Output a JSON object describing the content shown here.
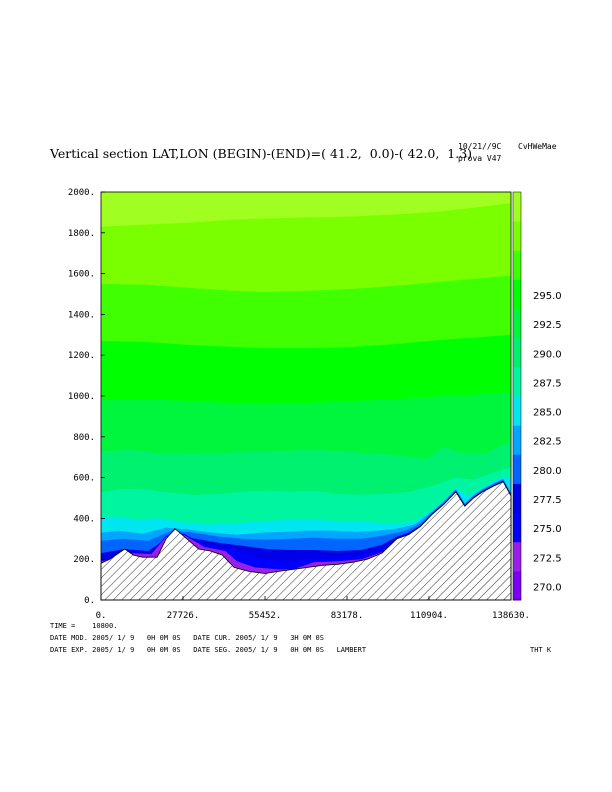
{
  "header": {
    "title": "Vertical section LAT,LON (BEGIN)-(END)=( 41.2,  0.0)-( 42.0,  1.3)",
    "run_date": "10/21//9C",
    "run_id": "CvHWeMae",
    "run_name": "prova V47"
  },
  "footer": {
    "time_line": "TIME =    10800.",
    "line1": "DATE MOD. 2005/ 1/ 9   0H 0M 0S   DATE CUR. 2005/ 1/ 9   3H 0M 0S",
    "line2": "DATE EXP. 2005/ 1/ 9   0H 0M 0S   DATE SEG. 2005/ 1/ 9   0H 0M 0S   LAMBERT",
    "variable": "THT K"
  },
  "chart_data": {
    "type": "heatmap",
    "variable": "THT",
    "units": "K",
    "xlim": [
      0,
      138630
    ],
    "ylim": [
      0,
      2000
    ],
    "xticks": [
      "0.",
      "27726.",
      "55452.",
      "83178.",
      "110904.",
      "138630."
    ],
    "xtick_values": [
      0,
      27726,
      55452,
      83178,
      110904,
      138630
    ],
    "yticks": [
      "0.",
      "200.",
      "400.",
      "600.",
      "800.",
      "1000.",
      "1200.",
      "1400.",
      "1600.",
      "1800.",
      "2000."
    ],
    "ytick_values": [
      0,
      200,
      400,
      600,
      800,
      1000,
      1200,
      1400,
      1600,
      1800,
      2000
    ],
    "colorbar_labels": [
      "270.0",
      "272.5",
      "275.0",
      "277.5",
      "280.0",
      "282.5",
      "285.0",
      "287.5",
      "290.0",
      "292.5",
      "295.0"
    ],
    "colorbar_values": [
      270.0,
      272.5,
      275.0,
      277.5,
      280.0,
      282.5,
      285.0,
      287.5,
      290.0,
      292.5,
      295.0
    ],
    "levels_colors": [
      "#7a00f5",
      "#9a1fe8",
      "#0000ff",
      "#0000e6",
      "#0066ff",
      "#00a6ff",
      "#00e6f0",
      "#00f5a0",
      "#00f070",
      "#00f53d",
      "#00ff00",
      "#40ff00",
      "#7aff00",
      "#a0ff20"
    ],
    "terrain": [
      [
        0,
        180
      ],
      [
        3000,
        200
      ],
      [
        8000,
        250
      ],
      [
        11000,
        220
      ],
      [
        14000,
        210
      ],
      [
        19000,
        210
      ],
      [
        22000,
        300
      ],
      [
        25000,
        350
      ],
      [
        29000,
        300
      ],
      [
        33000,
        250
      ],
      [
        37000,
        240
      ],
      [
        41000,
        220
      ],
      [
        45000,
        160
      ],
      [
        50000,
        140
      ],
      [
        55452,
        130
      ],
      [
        60000,
        140
      ],
      [
        65000,
        150
      ],
      [
        70000,
        160
      ],
      [
        75000,
        170
      ],
      [
        80000,
        175
      ],
      [
        85000,
        185
      ],
      [
        90000,
        200
      ],
      [
        95000,
        230
      ],
      [
        100000,
        300
      ],
      [
        104000,
        320
      ],
      [
        108000,
        360
      ],
      [
        112000,
        420
      ],
      [
        116000,
        470
      ],
      [
        120000,
        530
      ],
      [
        123000,
        460
      ],
      [
        126000,
        500
      ],
      [
        129000,
        530
      ],
      [
        133000,
        560
      ],
      [
        136000,
        580
      ],
      [
        138630,
        510
      ]
    ],
    "contours": [
      [
        [
          0,
          190
        ],
        [
          5000,
          205
        ],
        [
          10000,
          230
        ],
        [
          17000,
          225
        ],
        [
          22000,
          310
        ],
        [
          28000,
          320
        ],
        [
          35000,
          260
        ],
        [
          42000,
          240
        ],
        [
          46000,
          190
        ],
        [
          52000,
          160
        ],
        [
          60000,
          150
        ],
        [
          65000,
          150
        ],
        [
          72000,
          185
        ],
        [
          80000,
          190
        ],
        [
          88000,
          200
        ],
        [
          95000,
          235
        ],
        [
          100000,
          300
        ],
        [
          104000,
          320
        ],
        [
          108000,
          360
        ],
        [
          112000,
          420
        ],
        [
          116000,
          470
        ],
        [
          120000,
          530
        ],
        [
          123000,
          460
        ],
        [
          126000,
          500
        ],
        [
          129000,
          530
        ],
        [
          133000,
          560
        ],
        [
          136000,
          580
        ],
        [
          138630,
          510
        ]
      ],
      [
        [
          0,
          200
        ],
        [
          5000,
          215
        ],
        [
          10000,
          240
        ],
        [
          17000,
          230
        ],
        [
          22000,
          315
        ],
        [
          28000,
          325
        ],
        [
          35000,
          270
        ],
        [
          42000,
          255
        ],
        [
          48000,
          230
        ],
        [
          56000,
          200
        ],
        [
          65000,
          190
        ],
        [
          72000,
          210
        ],
        [
          80000,
          210
        ],
        [
          88000,
          220
        ],
        [
          95000,
          250
        ],
        [
          100000,
          305
        ],
        [
          104000,
          325
        ],
        [
          108000,
          362
        ],
        [
          112000,
          422
        ],
        [
          116000,
          472
        ],
        [
          120000,
          532
        ],
        [
          123000,
          462
        ],
        [
          126000,
          502
        ],
        [
          129000,
          532
        ],
        [
          133000,
          562
        ],
        [
          136000,
          582
        ],
        [
          138630,
          512
        ]
      ],
      [
        [
          0,
          230
        ],
        [
          8000,
          250
        ],
        [
          16000,
          240
        ],
        [
          24000,
          320
        ],
        [
          32000,
          300
        ],
        [
          40000,
          280
        ],
        [
          48000,
          265
        ],
        [
          56000,
          250
        ],
        [
          64000,
          245
        ],
        [
          72000,
          245
        ],
        [
          80000,
          240
        ],
        [
          88000,
          245
        ],
        [
          95000,
          270
        ],
        [
          100000,
          310
        ],
        [
          104000,
          330
        ],
        [
          108000,
          365
        ],
        [
          112000,
          425
        ],
        [
          116000,
          475
        ],
        [
          120000,
          535
        ],
        [
          123000,
          465
        ],
        [
          126000,
          505
        ],
        [
          129000,
          535
        ],
        [
          133000,
          565
        ],
        [
          136000,
          585
        ],
        [
          138630,
          515
        ]
      ],
      [
        [
          0,
          290
        ],
        [
          8000,
          300
        ],
        [
          16000,
          290
        ],
        [
          24000,
          340
        ],
        [
          32000,
          330
        ],
        [
          40000,
          310
        ],
        [
          48000,
          300
        ],
        [
          56000,
          295
        ],
        [
          64000,
          300
        ],
        [
          72000,
          305
        ],
        [
          80000,
          300
        ],
        [
          88000,
          300
        ],
        [
          95000,
          315
        ],
        [
          100000,
          330
        ],
        [
          104000,
          345
        ],
        [
          108000,
          375
        ],
        [
          112000,
          430
        ],
        [
          116000,
          480
        ],
        [
          120000,
          540
        ],
        [
          123000,
          470
        ],
        [
          126000,
          510
        ],
        [
          129000,
          540
        ],
        [
          133000,
          570
        ],
        [
          136000,
          590
        ],
        [
          138630,
          520
        ]
      ],
      [
        [
          0,
          330
        ],
        [
          6000,
          340
        ],
        [
          14000,
          325
        ],
        [
          22000,
          355
        ],
        [
          30000,
          345
        ],
        [
          38000,
          330
        ],
        [
          46000,
          320
        ],
        [
          54000,
          330
        ],
        [
          62000,
          335
        ],
        [
          70000,
          340
        ],
        [
          78000,
          340
        ],
        [
          86000,
          335
        ],
        [
          94000,
          340
        ],
        [
          100000,
          350
        ],
        [
          106000,
          370
        ],
        [
          112000,
          435
        ],
        [
          116000,
          485
        ],
        [
          120000,
          545
        ],
        [
          123000,
          475
        ],
        [
          126000,
          515
        ],
        [
          129000,
          545
        ],
        [
          133000,
          575
        ],
        [
          136000,
          595
        ],
        [
          138630,
          525
        ]
      ],
      [
        [
          0,
          410
        ],
        [
          6000,
          405
        ],
        [
          12000,
          395
        ],
        [
          20000,
          400
        ],
        [
          28000,
          380
        ],
        [
          36000,
          370
        ],
        [
          44000,
          375
        ],
        [
          52000,
          385
        ],
        [
          60000,
          390
        ],
        [
          68000,
          395
        ],
        [
          76000,
          390
        ],
        [
          84000,
          385
        ],
        [
          92000,
          380
        ],
        [
          100000,
          375
        ],
        [
          106000,
          385
        ],
        [
          112000,
          440
        ],
        [
          116000,
          490
        ],
        [
          120000,
          550
        ],
        [
          124000,
          510
        ],
        [
          128000,
          540
        ],
        [
          132000,
          580
        ],
        [
          136000,
          600
        ],
        [
          138630,
          600
        ]
      ],
      [
        [
          0,
          530
        ],
        [
          8000,
          545
        ],
        [
          16000,
          540
        ],
        [
          24000,
          525
        ],
        [
          32000,
          515
        ],
        [
          40000,
          520
        ],
        [
          48000,
          530
        ],
        [
          56000,
          535
        ],
        [
          64000,
          530
        ],
        [
          72000,
          535
        ],
        [
          80000,
          520
        ],
        [
          88000,
          515
        ],
        [
          96000,
          520
        ],
        [
          104000,
          530
        ],
        [
          110000,
          550
        ],
        [
          116000,
          580
        ],
        [
          120000,
          600
        ],
        [
          126000,
          590
        ],
        [
          132000,
          620
        ],
        [
          136000,
          640
        ],
        [
          138630,
          650
        ]
      ],
      [
        [
          0,
          730
        ],
        [
          10000,
          735
        ],
        [
          20000,
          720
        ],
        [
          30000,
          715
        ],
        [
          40000,
          720
        ],
        [
          50000,
          725
        ],
        [
          60000,
          730
        ],
        [
          70000,
          735
        ],
        [
          80000,
          730
        ],
        [
          90000,
          720
        ],
        [
          100000,
          710
        ],
        [
          110000,
          690
        ],
        [
          116000,
          750
        ],
        [
          122000,
          720
        ],
        [
          130000,
          720
        ],
        [
          136000,
          760
        ],
        [
          138630,
          780
        ]
      ],
      [
        [
          0,
          980
        ],
        [
          15000,
          985
        ],
        [
          30000,
          975
        ],
        [
          45000,
          965
        ],
        [
          55452,
          960
        ],
        [
          70000,
          965
        ],
        [
          85000,
          975
        ],
        [
          100000,
          985
        ],
        [
          115000,
          1000
        ],
        [
          130000,
          1010
        ],
        [
          138630,
          1020
        ]
      ],
      [
        [
          0,
          1270
        ],
        [
          15000,
          1265
        ],
        [
          30000,
          1250
        ],
        [
          45000,
          1240
        ],
        [
          55452,
          1235
        ],
        [
          70000,
          1235
        ],
        [
          85000,
          1240
        ],
        [
          100000,
          1255
        ],
        [
          115000,
          1275
        ],
        [
          130000,
          1290
        ],
        [
          138630,
          1300
        ]
      ],
      [
        [
          0,
          1550
        ],
        [
          15000,
          1545
        ],
        [
          30000,
          1530
        ],
        [
          45000,
          1515
        ],
        [
          55452,
          1510
        ],
        [
          70000,
          1515
        ],
        [
          85000,
          1525
        ],
        [
          100000,
          1540
        ],
        [
          115000,
          1560
        ],
        [
          130000,
          1580
        ],
        [
          138630,
          1590
        ]
      ],
      [
        [
          0,
          1830
        ],
        [
          15000,
          1840
        ],
        [
          30000,
          1850
        ],
        [
          45000,
          1865
        ],
        [
          55452,
          1870
        ],
        [
          70000,
          1875
        ],
        [
          85000,
          1880
        ],
        [
          100000,
          1890
        ],
        [
          115000,
          1905
        ],
        [
          130000,
          1930
        ],
        [
          138630,
          1945
        ]
      ]
    ]
  }
}
